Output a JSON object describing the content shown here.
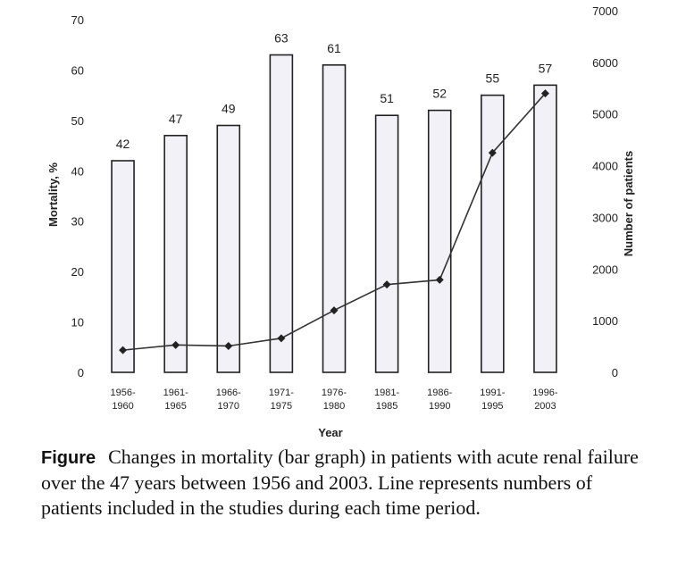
{
  "chart_data": {
    "type": "bar",
    "categories": [
      [
        "1956-",
        "1960"
      ],
      [
        "1961-",
        "1965"
      ],
      [
        "1966-",
        "1970"
      ],
      [
        "1971-",
        "1975"
      ],
      [
        "1976-",
        "1980"
      ],
      [
        "1981-",
        "1985"
      ],
      [
        "1986-",
        "1990"
      ],
      [
        "1991-",
        "1995"
      ],
      [
        "1996-",
        "2003"
      ]
    ],
    "series": [
      {
        "type": "bar",
        "axis": "left",
        "values": [
          42,
          47,
          49,
          63,
          61,
          51,
          52,
          55,
          57
        ],
        "labels": [
          "42",
          "47",
          "49",
          "63",
          "61",
          "51",
          "52",
          "55",
          "57"
        ]
      },
      {
        "type": "line",
        "axis": "right",
        "marker": "diamond",
        "values": [
          430,
          530,
          510,
          660,
          1200,
          1700,
          1790,
          4250,
          5400
        ]
      }
    ],
    "xlabel": "Year",
    "ylabel": "Mortality, %",
    "y2label": "Number of patients",
    "ylim": [
      0,
      70
    ],
    "y2lim": [
      0,
      7000
    ],
    "yticks": [
      "0",
      "10",
      "20",
      "30",
      "40",
      "50",
      "60",
      "70"
    ],
    "y2ticks": [
      "0",
      "1000",
      "2000",
      "3000",
      "4000",
      "5000",
      "6000",
      "7000"
    ],
    "grid": false,
    "legend": "none",
    "colors": {
      "bar_fill": "#f1f1f7",
      "bar_stroke": "#222222",
      "line": "#333333"
    }
  },
  "caption": {
    "label": "Figure",
    "text": "Changes in mortality (bar graph) in patients with acute renal failure over the 47 years between 1956 and 2003. Line represents numbers of patients included in the studies during each time period."
  }
}
